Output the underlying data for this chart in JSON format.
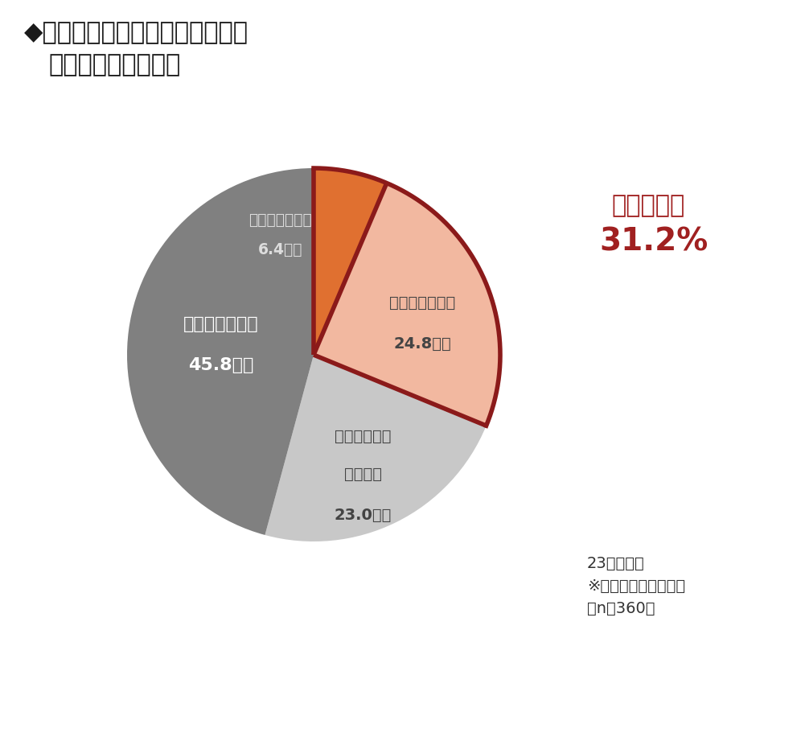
{
  "title_line1": "◆車非保有者（保有意向なし）の",
  "title_line2": "カーシェア利用意向",
  "slices": [
    {
      "label": "ぜひ利用したい",
      "pct": 6.4,
      "color": "#E07030",
      "label_color": "#FFFFFF",
      "pct_label": "6.4 ％"
    },
    {
      "label": "やや利用したい",
      "pct": 24.8,
      "color": "#F2B8A0",
      "label_color": "#444444",
      "pct_label": "24.8 ％"
    },
    {
      "label": "あまり利用したくない",
      "pct": 23.0,
      "color": "#C8C8C8",
      "label_color": "#444444",
      "pct_label": "23.0 ％"
    },
    {
      "label": "利用したくない",
      "pct": 45.8,
      "color": "#808080",
      "label_color": "#FFFFFF",
      "pct_label": "45.8 ％"
    }
  ],
  "combined_label": "利用したい",
  "combined_pct": "31.2%",
  "combined_color": "#A02020",
  "note_line1": "23区在住者",
  "note_line2": "※車保有意向なしのみ",
  "note_line3": "（n＝360）",
  "border_color": "#8B1A1A",
  "background_color": "#FFFFFF",
  "startangle": 90
}
